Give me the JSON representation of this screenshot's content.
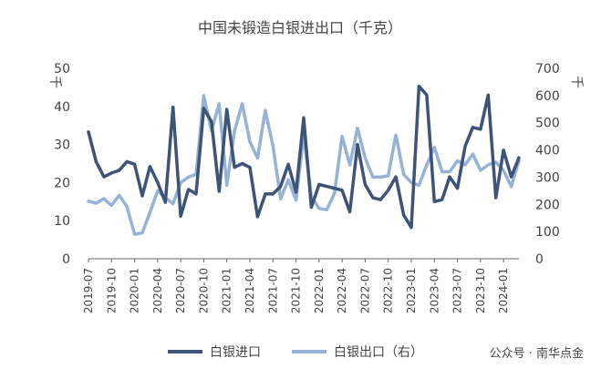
{
  "chart_data": {
    "type": "line",
    "title": "中国未锻造白银进出口（千克）",
    "ylabel_left": "千",
    "ylabel_right": "千",
    "ylim_left": [
      0,
      50
    ],
    "ylim_right": [
      0,
      700
    ],
    "yticks_left": [
      "0",
      "10",
      "20",
      "30",
      "40",
      "50"
    ],
    "yticks_right": [
      "0",
      "100",
      "200",
      "300",
      "400",
      "500",
      "600",
      "700"
    ],
    "xlabels": [
      "2019-07",
      "2019-10",
      "2020-01",
      "2020-04",
      "2020-07",
      "2020-10",
      "2021-01",
      "2021-04",
      "2021-07",
      "2021-10",
      "2022-01",
      "2022-04",
      "2022-07",
      "2022-10",
      "2023-01",
      "2023-04",
      "2023-07",
      "2023-10",
      "2024-01"
    ],
    "x": [
      "2019-07",
      "2019-08",
      "2019-09",
      "2019-10",
      "2019-11",
      "2019-12",
      "2020-01",
      "2020-02",
      "2020-03",
      "2020-04",
      "2020-05",
      "2020-06",
      "2020-07",
      "2020-08",
      "2020-09",
      "2020-10",
      "2020-11",
      "2020-12",
      "2021-01",
      "2021-02",
      "2021-03",
      "2021-04",
      "2021-05",
      "2021-06",
      "2021-07",
      "2021-08",
      "2021-09",
      "2021-10",
      "2021-11",
      "2021-12",
      "2022-01",
      "2022-02",
      "2022-03",
      "2022-04",
      "2022-05",
      "2022-06",
      "2022-07",
      "2022-08",
      "2022-09",
      "2022-10",
      "2022-11",
      "2022-12",
      "2023-01",
      "2023-02",
      "2023-03",
      "2023-04",
      "2023-05",
      "2023-06",
      "2023-07",
      "2023-08",
      "2023-09",
      "2023-10",
      "2023-11",
      "2023-12",
      "2024-01",
      "2024-02",
      "2024-03"
    ],
    "series": [
      {
        "name": "白银进口",
        "axis": "left",
        "color": "#3d5478",
        "values": [
          33.3,
          25.5,
          21.5,
          22.5,
          23.2,
          25.5,
          24.8,
          16.5,
          24.2,
          20.0,
          14.8,
          39.8,
          11.2,
          18.2,
          17.0,
          39.5,
          36.0,
          17.7,
          39.2,
          24.0,
          25.0,
          24.0,
          11.0,
          17.0,
          17.0,
          19.0,
          24.8,
          17.5,
          37.0,
          13.5,
          19.5,
          19.0,
          18.5,
          18.0,
          12.3,
          30.0,
          19.5,
          16.0,
          15.5,
          18.0,
          21.5,
          11.5,
          8.2,
          45.3,
          43.0,
          15.0,
          15.5,
          21.5,
          18.5,
          29.5,
          34.5,
          34.0,
          43.0,
          16.0,
          28.5,
          21.5,
          26.5
        ]
      },
      {
        "name": "白银出口（右）",
        "axis": "right",
        "color": "#95b3d7",
        "values": [
          212,
          204,
          221,
          196,
          233,
          192,
          90,
          95,
          170,
          250,
          225,
          202,
          280,
          300,
          310,
          600,
          470,
          570,
          270,
          470,
          570,
          430,
          370,
          545,
          415,
          220,
          290,
          215,
          455,
          230,
          185,
          180,
          240,
          450,
          345,
          480,
          370,
          300,
          300,
          305,
          455,
          310,
          280,
          270,
          345,
          410,
          320,
          320,
          360,
          345,
          385,
          325,
          345,
          355,
          325,
          265,
          360
        ]
      }
    ]
  },
  "watermark": "公众号 · 南华点金"
}
